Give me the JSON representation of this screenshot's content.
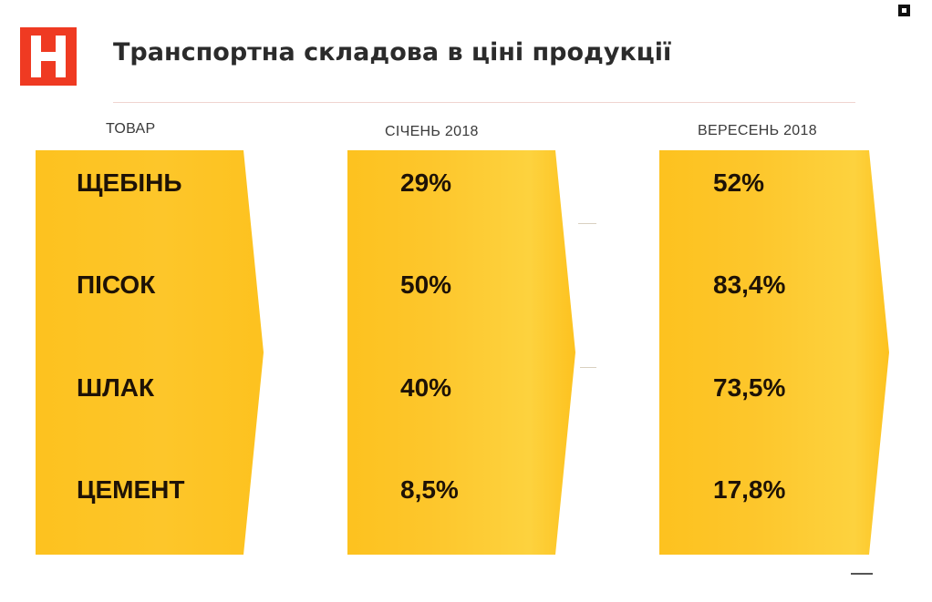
{
  "header": {
    "title": "Транспортна складова в ціні продукції",
    "logo_icon": "red-square-logo-icon"
  },
  "table": {
    "columns": [
      {
        "header": "ТОВАР"
      },
      {
        "header": "СІЧЕНЬ 2018"
      },
      {
        "header": "ВЕРЕСЕНЬ 2018"
      }
    ],
    "rows": [
      {
        "item": "ЩЕБІНЬ",
        "jan_2018": "29%",
        "sep_2018": "52%"
      },
      {
        "item": "ПІСОК",
        "jan_2018": "50%",
        "sep_2018": "83,4%"
      },
      {
        "item": "ШЛАК",
        "jan_2018": "40%",
        "sep_2018": "73,5%"
      },
      {
        "item": "ЦЕМЕНТ",
        "jan_2018": "8,5%",
        "sep_2018": "17,8%"
      }
    ]
  },
  "colors": {
    "panel_yellow": "#fdc21f",
    "panel_highlight": "#fdd23e",
    "logo_red": "#ef3a22",
    "title_text": "#2b2b2b",
    "cell_text": "#1e1206"
  }
}
